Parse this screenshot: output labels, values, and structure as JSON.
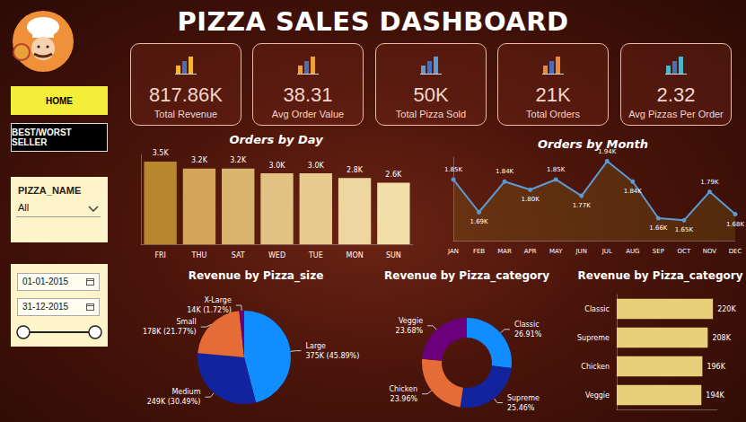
{
  "header": {
    "title": "PIZZA SALES DASHBOARD"
  },
  "navigation": [
    "HOME",
    "BEST/WORST SELLER"
  ],
  "filter": {
    "label": "PIZZA_NAME",
    "value": "All"
  },
  "date_range": {
    "start": "01-01-2015",
    "end": "31-12-2015"
  },
  "kpis": [
    {
      "value": 817860,
      "value_label": "817.86K",
      "label": "Total Revenue"
    },
    {
      "value": 38.31,
      "label": "Avg Order Value"
    },
    {
      "value": 50000,
      "value_label": "50K",
      "label": "Total Pizza Sold"
    },
    {
      "value": 21000,
      "value_label": "21K",
      "label": "Total Orders"
    },
    {
      "value": 2.32,
      "label": "Avg Pizzas Per Order"
    }
  ],
  "chart_data": [
    {
      "type": "bar",
      "title": "Orders by Day",
      "categories": [
        "FRI",
        "THU",
        "SAT",
        "WED",
        "TUE",
        "MON",
        "SUN"
      ],
      "values": [
        3500,
        3200,
        3200,
        3000,
        3000,
        2800,
        2600
      ],
      "value_labels": [
        "3.5K",
        "3.2K",
        "3.2K",
        "3.0K",
        "3.0K",
        "2.8K",
        "2.6K"
      ],
      "colors": [
        "#b8862d",
        "#d4a55a",
        "#dab56e",
        "#e2c282",
        "#e8cb8f",
        "#eed79f",
        "#f3dfaa"
      ],
      "ylim": [
        0,
        3800
      ],
      "data_labels": true,
      "tick_labels": "x",
      "grid": false
    },
    {
      "type": "line",
      "title": "Orders by Month",
      "categories": [
        "JAN",
        "FEB",
        "MAR",
        "APR",
        "MAY",
        "JUN",
        "JUL",
        "AUG",
        "SEP",
        "OCT",
        "NOV",
        "DEC"
      ],
      "values": [
        1850,
        1690,
        1840,
        1800,
        1850,
        1770,
        1940,
        1840,
        1660,
        1650,
        1790,
        1680
      ],
      "value_labels": [
        "1.85K",
        "1.69K",
        "1.84K",
        "1.80K",
        "1.85K",
        "1.77K",
        "1.94K",
        "1.84K",
        "1.66K",
        "1.65K",
        "1.79K",
        "1.68K"
      ],
      "color": "#5b9bd5",
      "marker": "circle",
      "ylim": [
        1550,
        1960
      ],
      "data_labels": true,
      "tick_labels": "x",
      "grid": false
    },
    {
      "type": "pie",
      "title": "Revenue by Pizza_size",
      "categories": [
        "Large",
        "Medium",
        "Small",
        "X-Large"
      ],
      "values": [
        375319,
        249382,
        178077,
        14076
      ],
      "value_labels": [
        "375K (45.89%)",
        "249K (30.49%)",
        "178K (21.77%)",
        "14K (1.72%)"
      ],
      "colors": [
        "#118dff",
        "#12239e",
        "#e66c37",
        "#6b007b"
      ],
      "data_labels": true
    },
    {
      "type": "donut",
      "title": "Revenue by Pizza_category",
      "categories": [
        "Classic",
        "Supreme",
        "Chicken",
        "Veggie"
      ],
      "values": [
        26.91,
        25.46,
        23.96,
        23.68
      ],
      "value_labels": [
        "26.91%",
        "25.46%",
        "23.96%",
        "23.68%"
      ],
      "colors": [
        "#118dff",
        "#12239e",
        "#e66c37",
        "#6b007b"
      ],
      "data_labels": true
    },
    {
      "type": "bar",
      "orientation": "horizontal",
      "title": "Revenue by Pizza_category",
      "categories": [
        "Classic",
        "Supreme",
        "Chicken",
        "Veggie"
      ],
      "values": [
        220053,
        208197,
        195920,
        193690
      ],
      "value_labels": [
        "220K",
        "208K",
        "196K",
        "194K"
      ],
      "color": "#e8d07a",
      "xlim": [
        0,
        230000
      ],
      "data_labels": true,
      "tick_labels": "y",
      "grid": false
    }
  ]
}
